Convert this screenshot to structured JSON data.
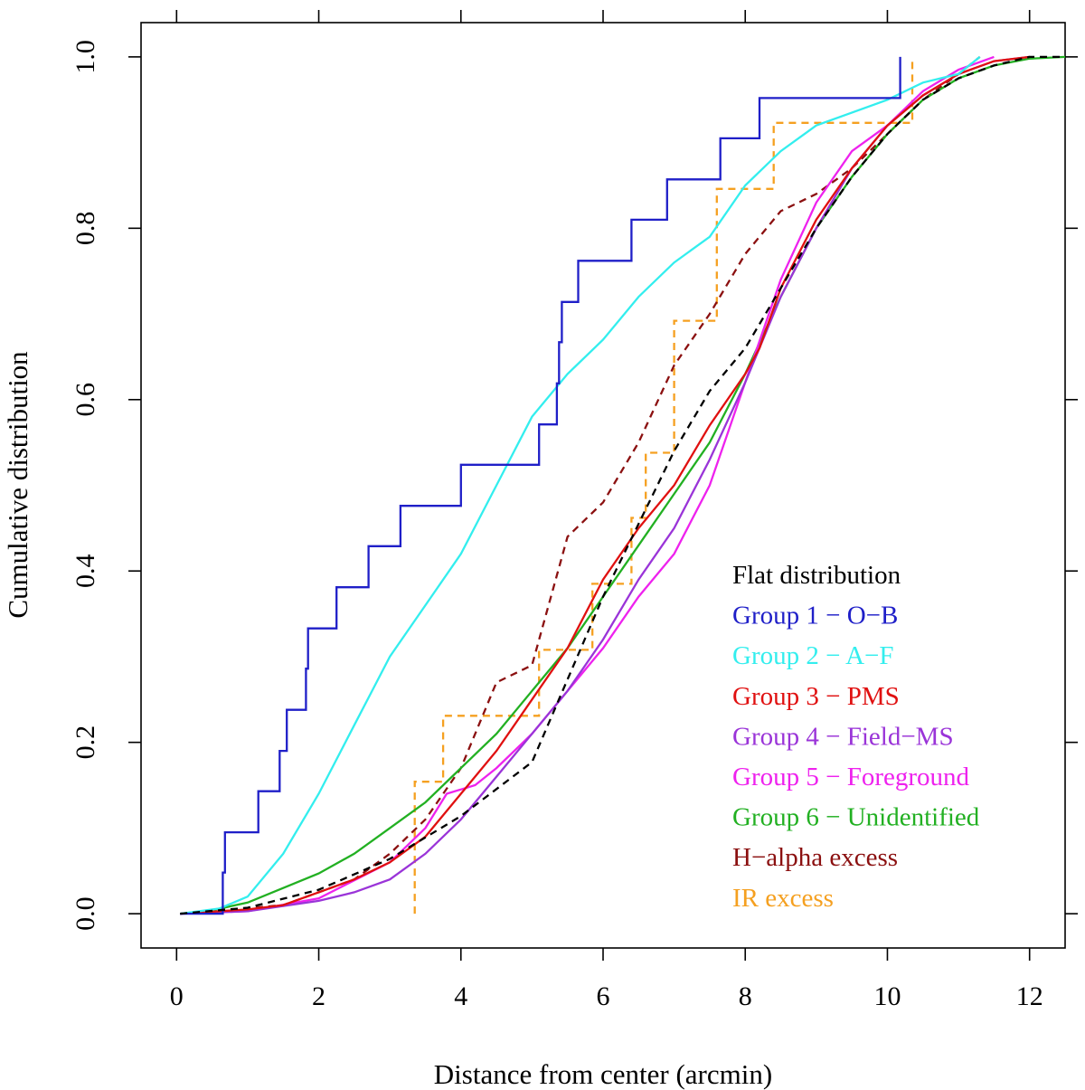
{
  "chart_data": {
    "type": "line",
    "title": "",
    "xlabel": "Distance from center (arcmin)",
    "ylabel": "Cumulative distribution",
    "xlim": [
      -0.5,
      12.5
    ],
    "ylim": [
      -0.04,
      1.04
    ],
    "xticks": [
      0,
      2,
      4,
      6,
      8,
      10,
      12
    ],
    "yticks": [
      0.0,
      0.2,
      0.4,
      0.6,
      0.8,
      1.0
    ],
    "xtick_labels": [
      "0",
      "2",
      "4",
      "6",
      "8",
      "10",
      "12"
    ],
    "ytick_labels": [
      "0.0",
      "0.2",
      "0.4",
      "0.6",
      "0.8",
      "1.0"
    ],
    "grid": false,
    "legend_position": "bottom-right inside",
    "series": [
      {
        "name": "Flat distribution",
        "color": "#000000",
        "dash": "dashed",
        "style": "line",
        "points": [
          [
            0.05,
            0.0
          ],
          [
            1,
            0.007
          ],
          [
            2,
            0.028
          ],
          [
            3,
            0.064
          ],
          [
            4,
            0.114
          ],
          [
            5,
            0.177
          ],
          [
            6,
            0.37
          ],
          [
            7,
            0.54
          ],
          [
            7.5,
            0.61
          ],
          [
            8,
            0.66
          ],
          [
            8.5,
            0.73
          ],
          [
            9,
            0.8
          ],
          [
            9.5,
            0.86
          ],
          [
            10,
            0.91
          ],
          [
            10.5,
            0.95
          ],
          [
            11,
            0.975
          ],
          [
            11.5,
            0.99
          ],
          [
            12,
            1.0
          ],
          [
            12.5,
            1.0
          ]
        ]
      },
      {
        "name": "Group 1 − O−B",
        "color": "#1f1fc8",
        "dash": "solid",
        "style": "step",
        "points": [
          [
            0.05,
            0.0
          ],
          [
            0.65,
            0.0
          ],
          [
            0.65,
            0.048
          ],
          [
            0.68,
            0.095
          ],
          [
            1.15,
            0.143
          ],
          [
            1.45,
            0.19
          ],
          [
            1.55,
            0.238
          ],
          [
            1.82,
            0.286
          ],
          [
            1.85,
            0.333
          ],
          [
            2.25,
            0.381
          ],
          [
            2.7,
            0.429
          ],
          [
            3.15,
            0.476
          ],
          [
            4.0,
            0.524
          ],
          [
            5.1,
            0.571
          ],
          [
            5.35,
            0.619
          ],
          [
            5.38,
            0.667
          ],
          [
            5.42,
            0.714
          ],
          [
            5.65,
            0.762
          ],
          [
            6.4,
            0.81
          ],
          [
            6.9,
            0.857
          ],
          [
            7.65,
            0.905
          ],
          [
            8.2,
            0.952
          ],
          [
            10.18,
            1.0
          ]
        ]
      },
      {
        "name": "Group 2 − A−F",
        "color": "#33eeee",
        "dash": "solid",
        "style": "line",
        "points": [
          [
            0.05,
            0.0
          ],
          [
            0.6,
            0.006
          ],
          [
            1.0,
            0.02
          ],
          [
            1.5,
            0.07
          ],
          [
            2.0,
            0.14
          ],
          [
            2.5,
            0.22
          ],
          [
            3.0,
            0.3
          ],
          [
            3.5,
            0.36
          ],
          [
            4.0,
            0.42
          ],
          [
            4.5,
            0.5
          ],
          [
            5.0,
            0.58
          ],
          [
            5.5,
            0.63
          ],
          [
            6.0,
            0.67
          ],
          [
            6.5,
            0.72
          ],
          [
            7.0,
            0.76
          ],
          [
            7.5,
            0.79
          ],
          [
            8.0,
            0.85
          ],
          [
            8.5,
            0.89
          ],
          [
            9.0,
            0.92
          ],
          [
            10.0,
            0.95
          ],
          [
            10.5,
            0.97
          ],
          [
            11.0,
            0.98
          ],
          [
            11.3,
            1.0
          ]
        ]
      },
      {
        "name": "Group 3 − PMS",
        "color": "#e01010",
        "dash": "solid",
        "style": "line",
        "points": [
          [
            0.05,
            0.0
          ],
          [
            1.0,
            0.005
          ],
          [
            1.5,
            0.01
          ],
          [
            2.0,
            0.025
          ],
          [
            2.5,
            0.04
          ],
          [
            3.0,
            0.06
          ],
          [
            3.5,
            0.09
          ],
          [
            4.0,
            0.14
          ],
          [
            4.5,
            0.19
          ],
          [
            5.0,
            0.25
          ],
          [
            5.5,
            0.31
          ],
          [
            6.0,
            0.39
          ],
          [
            6.5,
            0.45
          ],
          [
            7.0,
            0.5
          ],
          [
            7.5,
            0.57
          ],
          [
            8.0,
            0.63
          ],
          [
            8.2,
            0.66
          ],
          [
            8.5,
            0.73
          ],
          [
            9.0,
            0.81
          ],
          [
            9.5,
            0.87
          ],
          [
            10.0,
            0.92
          ],
          [
            10.5,
            0.955
          ],
          [
            11.0,
            0.98
          ],
          [
            11.5,
            0.995
          ],
          [
            12.0,
            1.0
          ]
        ]
      },
      {
        "name": "Group 4 − Field−MS",
        "color": "#9a34d8",
        "dash": "solid",
        "style": "line",
        "points": [
          [
            0.05,
            0.0
          ],
          [
            1.0,
            0.003
          ],
          [
            2.0,
            0.015
          ],
          [
            2.5,
            0.025
          ],
          [
            3.0,
            0.04
          ],
          [
            3.5,
            0.07
          ],
          [
            4.0,
            0.11
          ],
          [
            4.5,
            0.16
          ],
          [
            5.0,
            0.21
          ],
          [
            5.5,
            0.26
          ],
          [
            6.0,
            0.32
          ],
          [
            6.5,
            0.39
          ],
          [
            7.0,
            0.45
          ],
          [
            7.5,
            0.53
          ],
          [
            8.0,
            0.62
          ],
          [
            8.5,
            0.72
          ],
          [
            9.0,
            0.8
          ],
          [
            9.5,
            0.87
          ],
          [
            10.0,
            0.92
          ],
          [
            10.5,
            0.955
          ],
          [
            11.0,
            0.98
          ],
          [
            11.5,
            0.995
          ],
          [
            12.0,
            1.0
          ]
        ]
      },
      {
        "name": "Group 5 − Foreground",
        "color": "#ee22ee",
        "dash": "solid",
        "style": "line",
        "points": [
          [
            0.05,
            0.0
          ],
          [
            1.0,
            0.003
          ],
          [
            2.0,
            0.018
          ],
          [
            3.0,
            0.06
          ],
          [
            3.5,
            0.1
          ],
          [
            3.8,
            0.14
          ],
          [
            4.2,
            0.15
          ],
          [
            4.5,
            0.17
          ],
          [
            5.0,
            0.21
          ],
          [
            5.5,
            0.26
          ],
          [
            6.0,
            0.31
          ],
          [
            6.5,
            0.37
          ],
          [
            7.0,
            0.42
          ],
          [
            7.5,
            0.5
          ],
          [
            8.0,
            0.62
          ],
          [
            8.5,
            0.74
          ],
          [
            9.0,
            0.83
          ],
          [
            9.5,
            0.89
          ],
          [
            10.0,
            0.92
          ],
          [
            10.5,
            0.96
          ],
          [
            11.0,
            0.985
          ],
          [
            11.5,
            1.0
          ]
        ]
      },
      {
        "name": "Group 6 − Unidentified",
        "color": "#22b022",
        "dash": "solid",
        "style": "line",
        "points": [
          [
            0.05,
            0.0
          ],
          [
            0.5,
            0.004
          ],
          [
            1.0,
            0.013
          ],
          [
            1.5,
            0.03
          ],
          [
            2.0,
            0.047
          ],
          [
            2.5,
            0.07
          ],
          [
            3.0,
            0.1
          ],
          [
            3.5,
            0.13
          ],
          [
            4.0,
            0.17
          ],
          [
            4.5,
            0.21
          ],
          [
            5.0,
            0.26
          ],
          [
            5.5,
            0.31
          ],
          [
            6.0,
            0.37
          ],
          [
            6.5,
            0.43
          ],
          [
            7.0,
            0.49
          ],
          [
            7.5,
            0.55
          ],
          [
            8.0,
            0.63
          ],
          [
            8.5,
            0.72
          ],
          [
            9.0,
            0.8
          ],
          [
            9.5,
            0.86
          ],
          [
            10.0,
            0.91
          ],
          [
            10.5,
            0.95
          ],
          [
            11.0,
            0.975
          ],
          [
            11.5,
            0.99
          ],
          [
            12.0,
            0.998
          ],
          [
            12.5,
            1.0
          ]
        ]
      },
      {
        "name": "H−alpha excess",
        "color": "#8b1010",
        "dash": "dashed",
        "style": "line",
        "points": [
          [
            0.05,
            0.0
          ],
          [
            1.5,
            0.01
          ],
          [
            2.5,
            0.04
          ],
          [
            3.0,
            0.07
          ],
          [
            3.5,
            0.11
          ],
          [
            4.0,
            0.17
          ],
          [
            4.5,
            0.27
          ],
          [
            5.0,
            0.29
          ],
          [
            5.2,
            0.35
          ],
          [
            5.5,
            0.44
          ],
          [
            6.0,
            0.48
          ],
          [
            6.5,
            0.55
          ],
          [
            7.0,
            0.64
          ],
          [
            7.5,
            0.7
          ],
          [
            8.0,
            0.77
          ],
          [
            8.5,
            0.82
          ],
          [
            9.0,
            0.84
          ],
          [
            9.5,
            0.87
          ],
          [
            10.0,
            0.91
          ],
          [
            10.5,
            0.95
          ],
          [
            11.0,
            0.98
          ],
          [
            11.3,
            1.0
          ]
        ]
      },
      {
        "name": "IR excess",
        "color": "#f5a020",
        "dash": "dashed",
        "style": "step",
        "points": [
          [
            3.35,
            0.0
          ],
          [
            3.35,
            0.154
          ],
          [
            3.75,
            0.231
          ],
          [
            5.1,
            0.308
          ],
          [
            5.85,
            0.385
          ],
          [
            6.4,
            0.462
          ],
          [
            6.6,
            0.538
          ],
          [
            7.0,
            0.692
          ],
          [
            7.6,
            0.846
          ],
          [
            8.4,
            0.923
          ],
          [
            10.35,
            1.0
          ]
        ]
      }
    ]
  }
}
